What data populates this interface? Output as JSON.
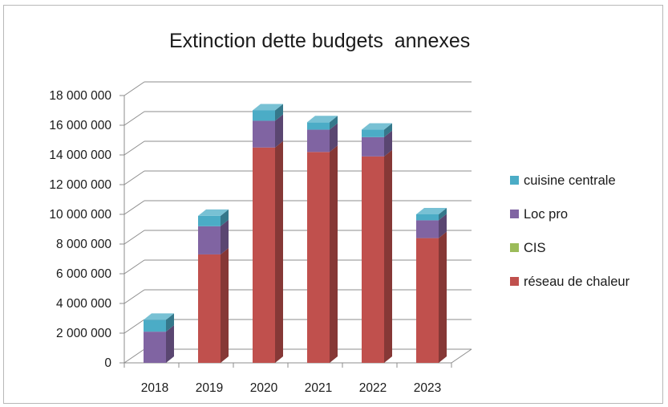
{
  "chart_data": {
    "type": "bar",
    "stacked": true,
    "three_d": true,
    "title": "Extinction dette budgets  annexes",
    "categories": [
      "2018",
      "2019",
      "2020",
      "2021",
      "2022",
      "2023"
    ],
    "series": [
      {
        "name": "réseau de chaleur",
        "color": "#c0504d",
        "values": [
          0,
          7300000,
          14500000,
          14200000,
          13900000,
          8400000
        ]
      },
      {
        "name": "CIS",
        "color": "#9bbb59",
        "values": [
          0,
          0,
          0,
          0,
          0,
          0
        ]
      },
      {
        "name": "Loc pro",
        "color": "#8064a2",
        "values": [
          2100000,
          1900000,
          1800000,
          1500000,
          1300000,
          1200000
        ]
      },
      {
        "name": "cuisine centrale",
        "color": "#4bacc6",
        "values": [
          800000,
          700000,
          700000,
          500000,
          500000,
          400000
        ]
      }
    ],
    "ylim": [
      0,
      18000000
    ],
    "yticks": [
      "0",
      "2 000 000",
      "4 000 000",
      "6 000 000",
      "8 000 000",
      "10 000 000",
      "12 000 000",
      "14 000 000",
      "16 000 000",
      "18 000 000"
    ],
    "legend_position": "right",
    "legend_order": [
      "cuisine centrale",
      "Loc pro",
      "CIS",
      "réseau de chaleur"
    ],
    "grid": true
  }
}
